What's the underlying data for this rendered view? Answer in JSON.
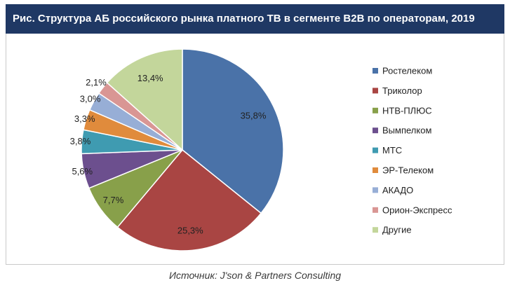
{
  "header": {
    "title": "Рис. Структура АБ российского рынка платного ТВ в сегменте B2B по операторам, 2019"
  },
  "source": "Источник: J'son & Partners Consulting",
  "colors": {
    "header_bg": "#1f3864",
    "slices": [
      "#4a72a8",
      "#a94543",
      "#88a04a",
      "#6c4f8e",
      "#3f9bb1",
      "#e08b3c",
      "#97aed6",
      "#d99694",
      "#c3d69b"
    ]
  },
  "chart_data": {
    "type": "pie",
    "title": "Рис. Структура АБ российского рынка платного ТВ в сегменте B2B по операторам, 2019",
    "categories": [
      "Ростелеком",
      "Триколор",
      "НТВ-ПЛЮС",
      "Вымпелком",
      "МТС",
      "ЭР-Телеком",
      "АКАДО",
      "Орион-Экспресс",
      "Другие"
    ],
    "values": [
      35.8,
      25.3,
      7.7,
      5.6,
      3.8,
      3.3,
      3.0,
      2.1,
      13.4
    ],
    "labels": [
      "35,8%",
      "25,3%",
      "7,7%",
      "5,6%",
      "3,8%",
      "3,3%",
      "3,0%",
      "2,1%",
      "13,4%"
    ],
    "legend_position": "right",
    "start_angle": "12 o'clock",
    "direction": "clockwise"
  }
}
